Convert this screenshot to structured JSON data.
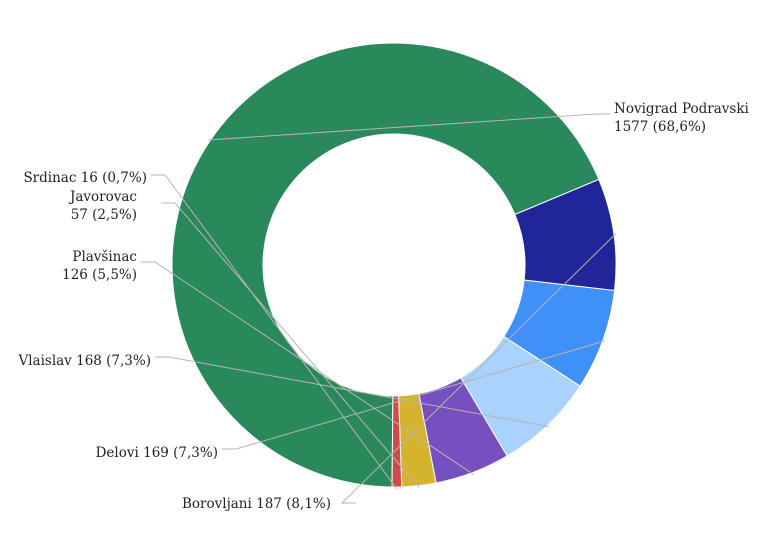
{
  "chart_data": {
    "type": "pie",
    "variant": "donut",
    "title": "",
    "slices": [
      {
        "name": "Novigrad Podravski",
        "value": 1577,
        "percent": "68,6%",
        "line1": "Novigrad Podravski",
        "line2": "1577 (68,6%)",
        "color": "#2a895b"
      },
      {
        "name": "Borovljani",
        "value": 187,
        "percent": "8,1%",
        "line1": "Borovljani 187 (8,1%)",
        "line2": "",
        "color": "#21259a"
      },
      {
        "name": "Delovi",
        "value": 169,
        "percent": "7,3%",
        "line1": "Delovi 169 (7,3%)",
        "line2": "",
        "color": "#3f90f7"
      },
      {
        "name": "Vlaislav",
        "value": 168,
        "percent": "7,3%",
        "line1": "Vlaislav 168 (7,3%)",
        "line2": "",
        "color": "#a9d2fd"
      },
      {
        "name": "Plavšinac",
        "value": 126,
        "percent": "5,5%",
        "line1": "Plavšinac",
        "line2": "126 (5,5%)",
        "color": "#7550be"
      },
      {
        "name": "Javorovac",
        "value": 57,
        "percent": "2,5%",
        "line1": "Javorovac",
        "line2": "57 (2,5%)",
        "color": "#d4b32e"
      },
      {
        "name": "Srdinac",
        "value": 16,
        "percent": "0,7%",
        "line1": "Srdinac 16 (0,7%)",
        "line2": "",
        "color": "#cf4a4a"
      }
    ],
    "start_direction": "clockwise from the bottom, largest slice first"
  }
}
